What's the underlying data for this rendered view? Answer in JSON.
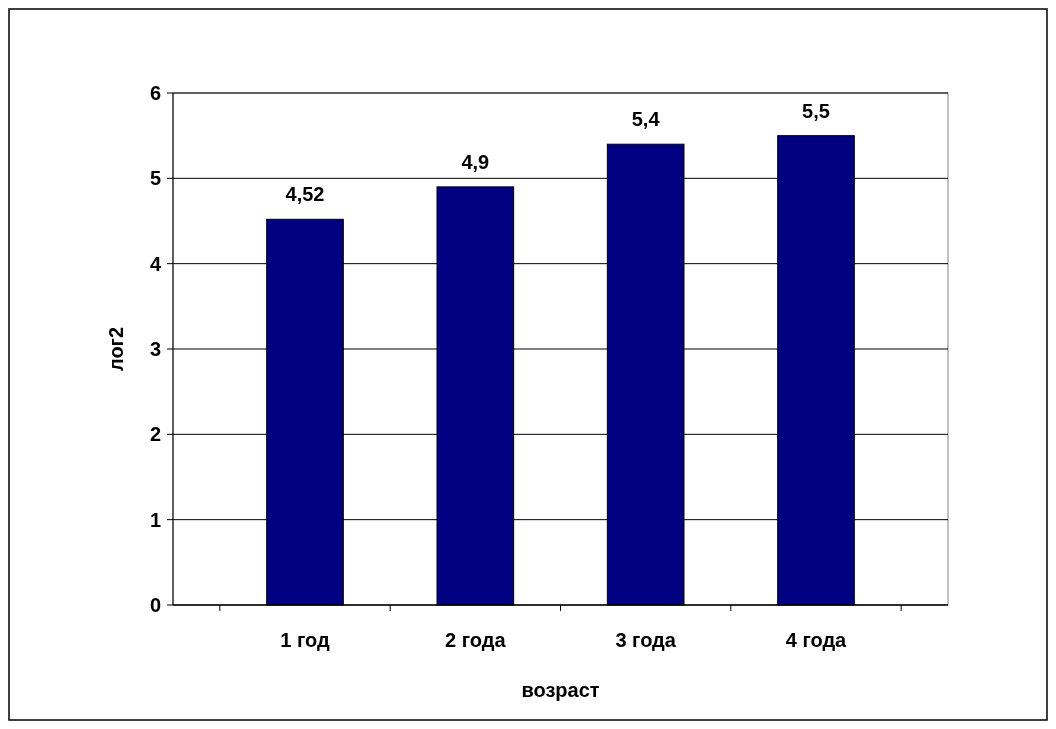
{
  "chart_data": {
    "type": "bar",
    "xlabel": "возраст",
    "ylabel": "лог2",
    "categories": [
      "1 год",
      "2 года",
      "3 года",
      "4 года"
    ],
    "values": [
      4.52,
      4.9,
      5.4,
      5.5
    ],
    "value_labels": [
      "4,52",
      "4,9",
      "5,4",
      "5,5"
    ],
    "color": "#000080",
    "ylim": [
      0,
      6
    ],
    "yticks": [
      0,
      1,
      2,
      3,
      4,
      5,
      6
    ],
    "grid": "y"
  }
}
